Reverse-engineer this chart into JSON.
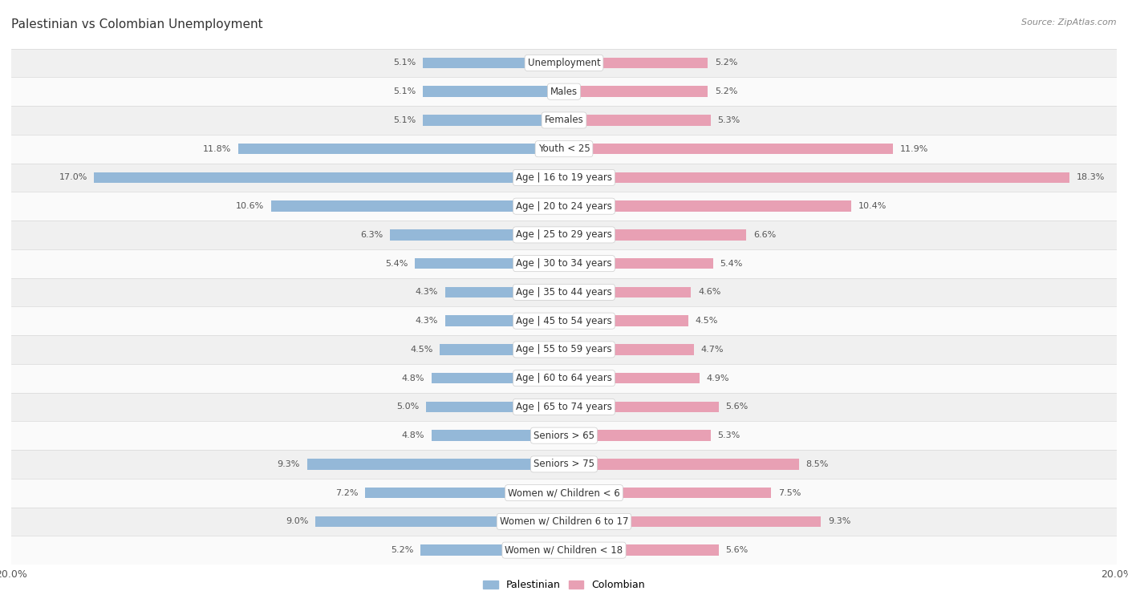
{
  "title": "Palestinian vs Colombian Unemployment",
  "source": "Source: ZipAtlas.com",
  "categories": [
    "Unemployment",
    "Males",
    "Females",
    "Youth < 25",
    "Age | 16 to 19 years",
    "Age | 20 to 24 years",
    "Age | 25 to 29 years",
    "Age | 30 to 34 years",
    "Age | 35 to 44 years",
    "Age | 45 to 54 years",
    "Age | 55 to 59 years",
    "Age | 60 to 64 years",
    "Age | 65 to 74 years",
    "Seniors > 65",
    "Seniors > 75",
    "Women w/ Children < 6",
    "Women w/ Children 6 to 17",
    "Women w/ Children < 18"
  ],
  "palestinian": [
    5.1,
    5.1,
    5.1,
    11.8,
    17.0,
    10.6,
    6.3,
    5.4,
    4.3,
    4.3,
    4.5,
    4.8,
    5.0,
    4.8,
    9.3,
    7.2,
    9.0,
    5.2
  ],
  "colombian": [
    5.2,
    5.2,
    5.3,
    11.9,
    18.3,
    10.4,
    6.6,
    5.4,
    4.6,
    4.5,
    4.7,
    4.9,
    5.6,
    5.3,
    8.5,
    7.5,
    9.3,
    5.6
  ],
  "palestinian_color": "#94b8d8",
  "colombian_color": "#e8a0b4",
  "bar_height": 0.38,
  "xlim": 20.0,
  "bg_color": "#ffffff",
  "row_color_even": "#f0f0f0",
  "row_color_odd": "#fafafa",
  "row_separator_color": "#d8d8d8",
  "label_fontsize": 8.5,
  "title_fontsize": 11,
  "source_fontsize": 8,
  "value_fontsize": 8,
  "legend_fontsize": 9,
  "axis_label_fontsize": 9
}
